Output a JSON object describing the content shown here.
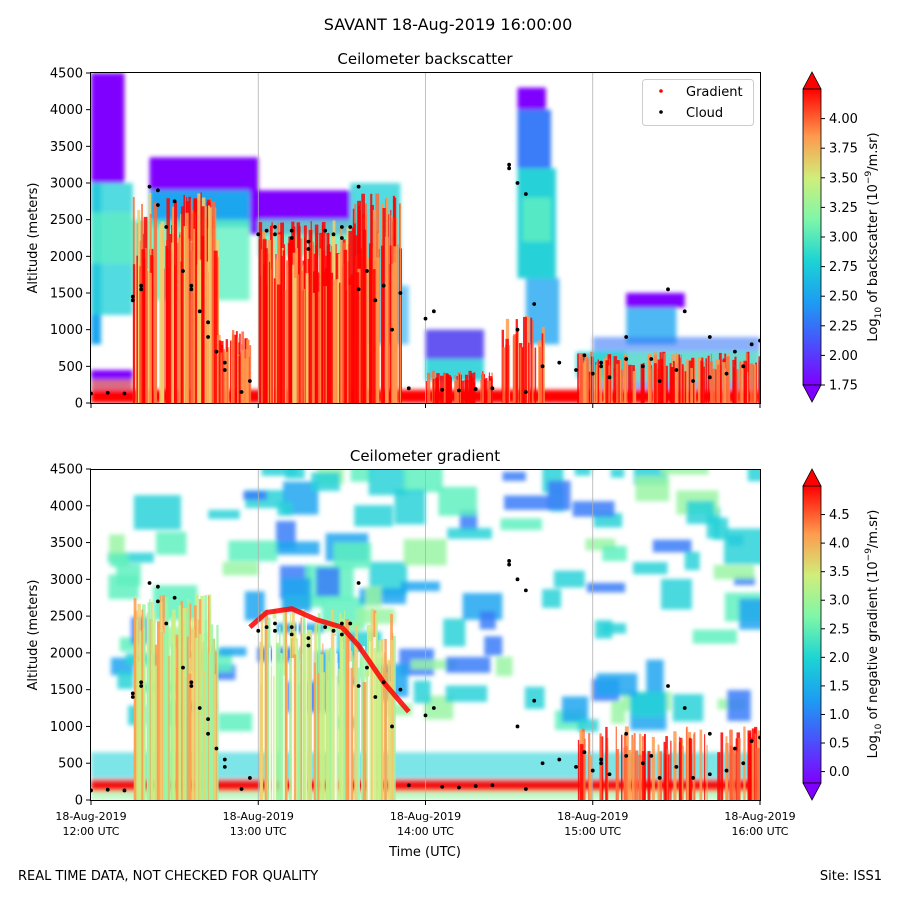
{
  "suptitle": "SAVANT 18-Aug-2019 16:00:00",
  "footer": {
    "left": "REAL TIME DATA, NOT CHECKED FOR QUALITY",
    "right": "Site: ISS1"
  },
  "chart_data": [
    {
      "type": "heatmap",
      "title": "Ceilometer backscatter",
      "xlabel": "",
      "ylabel": "Altitude (meters)",
      "ylim": [
        0,
        4500
      ],
      "yticks": [
        0,
        500,
        1000,
        1500,
        2000,
        2500,
        3000,
        3500,
        4000,
        4500
      ],
      "x_range": [
        "18-Aug-2019 12:00 UTC",
        "18-Aug-2019 16:00 UTC"
      ],
      "x_hours": [
        12,
        16
      ],
      "grid": "vertical at each hour",
      "legend": {
        "placement": "top-right",
        "entries": [
          {
            "label": "Gradient",
            "color": "#ff0000"
          },
          {
            "label": "Cloud",
            "color": "#000000"
          }
        ]
      },
      "colorbar": {
        "label": "Log10 of backscatter (10^-9/m.sr)",
        "range": [
          1.75,
          4.25
        ],
        "ticks": [
          "1.75",
          "2.00",
          "2.25",
          "2.50",
          "2.75",
          "3.00",
          "3.25",
          "3.50",
          "3.75",
          "4.00"
        ],
        "extend": "both",
        "colormap": "rainbow"
      }
    },
    {
      "type": "heatmap",
      "title": "Ceilometer gradient",
      "xlabel": "Time (UTC)",
      "ylabel": "Altitude (meters)",
      "ylim": [
        0,
        4500
      ],
      "yticks": [
        0,
        500,
        1000,
        1500,
        2000,
        2500,
        3000,
        3500,
        4000,
        4500
      ],
      "x_range": [
        "18-Aug-2019 12:00 UTC",
        "18-Aug-2019 16:00 UTC"
      ],
      "x_hours": [
        12,
        16
      ],
      "xticks": [
        {
          "date": "18-Aug-2019",
          "time": "12:00 UTC"
        },
        {
          "date": "18-Aug-2019",
          "time": "13:00 UTC"
        },
        {
          "date": "18-Aug-2019",
          "time": "14:00 UTC"
        },
        {
          "date": "18-Aug-2019",
          "time": "15:00 UTC"
        },
        {
          "date": "18-Aug-2019",
          "time": "16:00 UTC"
        }
      ],
      "grid": "vertical at each hour",
      "colorbar": {
        "label": "Log10 of negative gradient (10^-9/m.sr)",
        "range": [
          -0.2,
          5.0
        ],
        "ticks": [
          "0.0",
          "0.5",
          "1.0",
          "1.5",
          "2.0",
          "2.5",
          "3.0",
          "3.5",
          "4.0",
          "4.5"
        ],
        "extend": "both",
        "colormap": "rainbow"
      }
    }
  ],
  "cloud_base_series": {
    "name": "Cloud",
    "color": "#000000",
    "x_hours": [
      12.0,
      12.1,
      12.2,
      12.25,
      12.3,
      12.4,
      12.5,
      12.6,
      12.7,
      12.75,
      12.8,
      12.9,
      13.0,
      13.1,
      13.2,
      13.3,
      13.4,
      13.5,
      13.6,
      13.7,
      13.8,
      13.9,
      14.0,
      14.1,
      14.2,
      14.3,
      14.4,
      14.5,
      14.55,
      14.6,
      14.7,
      14.8,
      14.9,
      15.0,
      15.05,
      15.1,
      15.2,
      15.3,
      15.4,
      15.5,
      15.6,
      15.7,
      15.8,
      15.9,
      16.0
    ],
    "altitude_m": [
      130,
      140,
      130,
      1400,
      1550,
      2900,
      2750,
      1600,
      1100,
      700,
      450,
      150,
      2300,
      2400,
      2350,
      2200,
      2350,
      2400,
      1550,
      1400,
      1000,
      200,
      1150,
      180,
      170,
      190,
      200,
      3200,
      1000,
      150,
      500,
      550,
      450,
      400,
      500,
      350,
      600,
      500,
      300,
      450,
      300,
      350,
      400,
      500,
      850
    ]
  },
  "upper_cloud_series": {
    "name": "Cloud",
    "color": "#000000",
    "x_hours": [
      12.25,
      12.3,
      12.35,
      12.4,
      12.45,
      12.55,
      12.6,
      12.65,
      12.7,
      12.8,
      12.95,
      13.05,
      13.1,
      13.2,
      13.3,
      13.45,
      13.5,
      13.55,
      13.6,
      13.65,
      13.75,
      13.85,
      14.05,
      14.5,
      14.55,
      14.6,
      14.65,
      14.95,
      15.05,
      15.2,
      15.35,
      15.45,
      15.55,
      15.7,
      15.85,
      15.95
    ],
    "altitude_m": [
      1450,
      1600,
      2950,
      2700,
      2400,
      1800,
      1550,
      1250,
      900,
      550,
      300,
      2350,
      2300,
      2250,
      2100,
      2300,
      2250,
      2400,
      2950,
      1800,
      1600,
      1500,
      1250,
      3250,
      3000,
      2850,
      1350,
      650,
      550,
      900,
      600,
      1550,
      1250,
      900,
      700,
      800
    ]
  }
}
